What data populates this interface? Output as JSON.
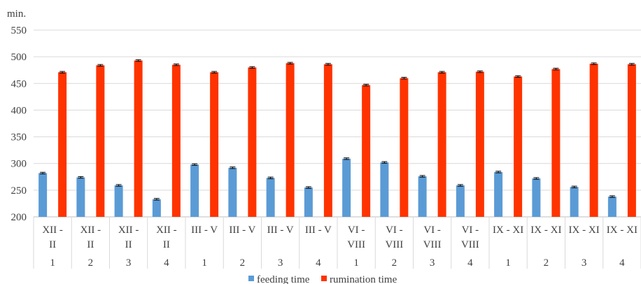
{
  "chart_data": {
    "type": "bar",
    "ylabel": "min.",
    "ylim": [
      200,
      550
    ],
    "yticks": [
      200,
      250,
      300,
      350,
      400,
      450,
      500,
      550
    ],
    "grid": true,
    "legend_position": "bottom",
    "categories": [
      {
        "period": "XII - II",
        "group": "1"
      },
      {
        "period": "XII - II",
        "group": "2"
      },
      {
        "period": "XII - II",
        "group": "3"
      },
      {
        "period": "XII - II",
        "group": "4"
      },
      {
        "period": "III - V",
        "group": "1"
      },
      {
        "period": "III - V",
        "group": "2"
      },
      {
        "period": "III - V",
        "group": "3"
      },
      {
        "period": "III - V",
        "group": "4"
      },
      {
        "period": "VI - VIII",
        "group": "1"
      },
      {
        "period": "VI - VIII",
        "group": "2"
      },
      {
        "period": "VI - VIII",
        "group": "3"
      },
      {
        "period": "VI - VIII",
        "group": "4"
      },
      {
        "period": "IX - XI",
        "group": "1"
      },
      {
        "period": "IX - XI",
        "group": "2"
      },
      {
        "period": "IX - XI",
        "group": "3"
      },
      {
        "period": "IX - XI",
        "group": "4"
      }
    ],
    "series": [
      {
        "name": "feeding time",
        "color": "#5b9bd5",
        "values": [
          282,
          274,
          259,
          233,
          298,
          292,
          273,
          255,
          309,
          302,
          276,
          259,
          284,
          272,
          256,
          238
        ],
        "error": 1.5
      },
      {
        "name": "rumination time",
        "color": "#ff3300",
        "values": [
          471,
          484,
          493,
          485,
          471,
          480,
          488,
          486,
          447,
          460,
          471,
          472,
          463,
          477,
          487,
          486
        ],
        "error": 1.5
      }
    ]
  }
}
